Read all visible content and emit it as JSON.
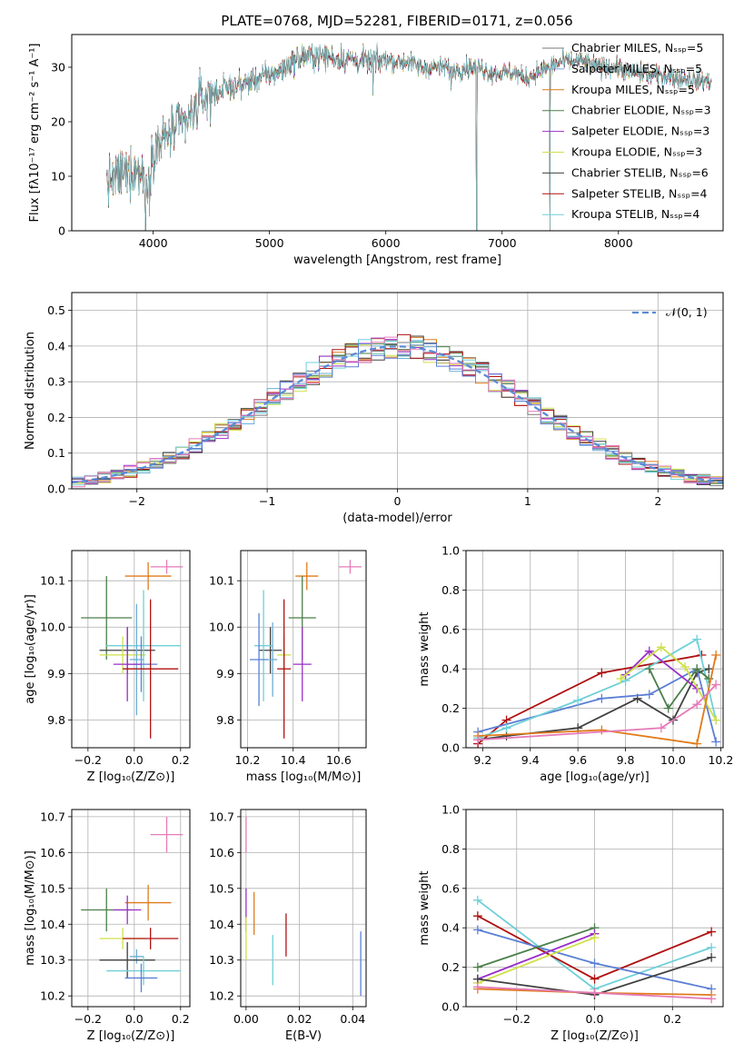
{
  "title": "PLATE=0768, MJD=52281, FIBERID=0171, z=0.056",
  "colors": [
    "#7a7a7a",
    "#6baed6",
    "#e07b1a",
    "#4a7f4a",
    "#9b2fc7",
    "#cfe04a",
    "#404040",
    "#b01010",
    "#6fd0d8",
    "#5b7fd6",
    "#e57ab8"
  ],
  "chart_data": [
    {
      "type": "line",
      "xlabel": "wavelength [Angstrom, rest frame]",
      "ylabel": "Flux [fλ10⁻¹⁷ erg cm⁻² s⁻¹ A⁻¹]",
      "xlim": [
        3300,
        8900
      ],
      "ylim": [
        0,
        36
      ],
      "xticks": [
        "4000",
        "5000",
        "6000",
        "7000",
        "8000"
      ],
      "yticks": [
        "0",
        "10",
        "20",
        "30"
      ],
      "legend": [
        "Chabrier MILES, Nₛₛₚ=5",
        "Salpeter MILES, Nₛₛₚ=5",
        "Kroupa MILES, Nₛₛₚ=5",
        "Chabrier ELODIE, Nₛₛₚ=3",
        "Salpeter ELODIE, Nₛₛₚ=3",
        "Kroupa ELODIE, Nₛₛₚ=3",
        "Chabrier STELIB, Nₛₛₚ=6",
        "Salpeter STELIB, Nₛₛₚ=4",
        "Kroupa STELIB, Nₛₛₚ=4"
      ],
      "legend_colors": [
        "#7a7a7a",
        "#6baed6",
        "#e07b1a",
        "#4a7f4a",
        "#9b2fc7",
        "#cfe04a",
        "#404040",
        "#b01010",
        "#6fd0d8"
      ],
      "continuum": [
        [
          3600,
          9
        ],
        [
          3700,
          10
        ],
        [
          3800,
          11
        ],
        [
          3900,
          11
        ],
        [
          3950,
          9
        ],
        [
          4000,
          15
        ],
        [
          4100,
          17
        ],
        [
          4200,
          19
        ],
        [
          4300,
          20
        ],
        [
          4400,
          24
        ],
        [
          4500,
          25
        ],
        [
          4600,
          26
        ],
        [
          4700,
          26.5
        ],
        [
          4800,
          27
        ],
        [
          4900,
          28
        ],
        [
          5000,
          28.5
        ],
        [
          5100,
          29.5
        ],
        [
          5200,
          31
        ],
        [
          5300,
          32
        ],
        [
          5400,
          32
        ],
        [
          5500,
          32
        ],
        [
          5600,
          31.5
        ],
        [
          5700,
          31.5
        ],
        [
          5800,
          31
        ],
        [
          5900,
          31
        ],
        [
          6000,
          31.5
        ],
        [
          6100,
          31
        ],
        [
          6200,
          31
        ],
        [
          6300,
          30
        ],
        [
          6400,
          30
        ],
        [
          6500,
          30
        ],
        [
          6600,
          29.5
        ],
        [
          6700,
          30
        ],
        [
          6800,
          30
        ],
        [
          6900,
          29
        ],
        [
          7000,
          29
        ],
        [
          7100,
          29
        ],
        [
          7200,
          28
        ],
        [
          7300,
          29
        ],
        [
          7400,
          30
        ],
        [
          7500,
          31
        ],
        [
          7600,
          31
        ],
        [
          7700,
          31
        ],
        [
          7800,
          30
        ],
        [
          7900,
          30
        ],
        [
          8000,
          30
        ],
        [
          8100,
          29
        ],
        [
          8200,
          29
        ],
        [
          8300,
          28.5
        ],
        [
          8400,
          28.5
        ],
        [
          8500,
          28
        ],
        [
          8600,
          28
        ],
        [
          8700,
          27.5
        ],
        [
          8800,
          27.5
        ]
      ],
      "dips": [
        [
          3934,
          0
        ],
        [
          3968,
          3
        ],
        [
          5890,
          25
        ],
        [
          6780,
          0
        ],
        [
          6563,
          26
        ],
        [
          7410,
          0
        ]
      ]
    },
    {
      "type": "histogram",
      "xlabel": "(data-model)/error",
      "ylabel": "Normed distribution",
      "xlim": [
        -2.5,
        2.5
      ],
      "ylim": [
        0,
        0.55
      ],
      "xticks": [
        "−2",
        "−1",
        "0",
        "1",
        "2"
      ],
      "yticks": [
        "0.0",
        "0.1",
        "0.2",
        "0.3",
        "0.4",
        "0.5"
      ],
      "legend": [
        "𝒩(0, 1)"
      ],
      "bin_width": 0.1,
      "reference_curve": "gaussian mean 0 sigma 1"
    },
    {
      "type": "scatter",
      "xlabel": "Z [log₁₀(Z/Z⊙)]",
      "ylabel": "age  [log₁₀(age/yr)]",
      "xlim": [
        -0.27,
        0.24
      ],
      "ylim": [
        9.74,
        10.165
      ],
      "xticks": [
        "−0.2",
        "0.0",
        "0.2"
      ],
      "yticks": [
        "9.8",
        "9.9",
        "10.0",
        "10.1"
      ],
      "points": [
        {
          "x": 0.14,
          "y": 10.13,
          "xerr": 0.07,
          "yerr": 0.015,
          "color": "#e57ab8"
        },
        {
          "x": 0.06,
          "y": 10.11,
          "xerr": 0.1,
          "yerr": 0.03,
          "color": "#e07b1a"
        },
        {
          "x": -0.12,
          "y": 10.02,
          "xerr": 0.11,
          "yerr": 0.09,
          "color": "#4a7f4a"
        },
        {
          "x": -0.03,
          "y": 9.95,
          "xerr": 0.12,
          "yerr": 0.05,
          "color": "#404040"
        },
        {
          "x": -0.05,
          "y": 9.94,
          "xerr": 0.1,
          "yerr": 0.04,
          "color": "#cfe04a"
        },
        {
          "x": 0.04,
          "y": 9.96,
          "xerr": 0.16,
          "yerr": 0.12,
          "color": "#6fd0d8"
        },
        {
          "x": 0.03,
          "y": 9.92,
          "xerr": 0.07,
          "yerr": 0.06,
          "color": "#5b7fd6"
        },
        {
          "x": 0.01,
          "y": 9.93,
          "xerr": 0.03,
          "yerr": 0.12,
          "color": "#6baed6"
        },
        {
          "x": -0.03,
          "y": 9.92,
          "xerr": 0.06,
          "yerr": 0.08,
          "color": "#9b2fc7"
        },
        {
          "x": 0.07,
          "y": 9.91,
          "xerr": 0.12,
          "yerr": 0.15,
          "color": "#b01010"
        }
      ]
    },
    {
      "type": "scatter",
      "xlabel": "mass [log₁₀(M/M⊙)]",
      "ylabel": "",
      "xlim": [
        10.17,
        10.72
      ],
      "ylim": [
        9.74,
        10.165
      ],
      "xticks": [
        "10.2",
        "10.4",
        "10.6"
      ],
      "yticks": [
        "9.8",
        "9.9",
        "10.0",
        "10.1"
      ],
      "points": [
        {
          "x": 10.65,
          "y": 10.13,
          "xerr": 0.05,
          "yerr": 0.015,
          "color": "#e57ab8"
        },
        {
          "x": 10.46,
          "y": 10.11,
          "xerr": 0.05,
          "yerr": 0.03,
          "color": "#e07b1a"
        },
        {
          "x": 10.44,
          "y": 10.02,
          "xerr": 0.06,
          "yerr": 0.09,
          "color": "#4a7f4a"
        },
        {
          "x": 10.3,
          "y": 9.95,
          "xerr": 0.05,
          "yerr": 0.05,
          "color": "#404040"
        },
        {
          "x": 10.36,
          "y": 9.94,
          "xerr": 0.03,
          "yerr": 0.04,
          "color": "#cfe04a"
        },
        {
          "x": 10.27,
          "y": 9.96,
          "xerr": 0.04,
          "yerr": 0.12,
          "color": "#6fd0d8"
        },
        {
          "x": 10.25,
          "y": 9.93,
          "xerr": 0.04,
          "yerr": 0.1,
          "color": "#5b7fd6"
        },
        {
          "x": 10.31,
          "y": 9.93,
          "xerr": 0.02,
          "yerr": 0.08,
          "color": "#6baed6"
        },
        {
          "x": 10.44,
          "y": 9.92,
          "xerr": 0.04,
          "yerr": 0.08,
          "color": "#9b2fc7"
        },
        {
          "x": 10.36,
          "y": 9.91,
          "xerr": 0.03,
          "yerr": 0.15,
          "color": "#b01010"
        }
      ]
    },
    {
      "type": "line",
      "xlabel": "age  [log₁₀(age/yr)]",
      "ylabel": "mass weight",
      "xlim": [
        9.13,
        10.21
      ],
      "ylim": [
        0,
        1
      ],
      "xticks": [
        "9.2",
        "9.4",
        "9.6",
        "9.8",
        "10.0",
        "10.2"
      ],
      "yticks": [
        "0.0",
        "0.2",
        "0.4",
        "0.6",
        "0.8",
        "1.0"
      ],
      "series": [
        {
          "color": "#b01010",
          "x": [
            9.18,
            9.3,
            9.7,
            10.12
          ],
          "y": [
            0.02,
            0.14,
            0.38,
            0.47
          ]
        },
        {
          "color": "#404040",
          "x": [
            9.18,
            9.3,
            9.6,
            9.85,
            10.0,
            10.1,
            10.15
          ],
          "y": [
            0.04,
            0.06,
            0.1,
            0.25,
            0.14,
            0.38,
            0.4
          ]
        },
        {
          "color": "#5b7fd6",
          "x": [
            9.18,
            9.7,
            9.9,
            10.1,
            10.18
          ],
          "y": [
            0.08,
            0.25,
            0.27,
            0.4,
            0.03
          ]
        },
        {
          "color": "#6fd0d8",
          "x": [
            9.18,
            9.3,
            9.6,
            9.8,
            10.1,
            10.18
          ],
          "y": [
            0.05,
            0.1,
            0.24,
            0.34,
            0.55,
            0.14
          ]
        },
        {
          "color": "#4a7f4a",
          "x": [
            9.9,
            9.98,
            10.1,
            10.15
          ],
          "y": [
            0.4,
            0.2,
            0.4,
            0.35
          ]
        },
        {
          "color": "#9b2fc7",
          "x": [
            9.8,
            9.9,
            10.1
          ],
          "y": [
            0.37,
            0.49,
            0.3
          ]
        },
        {
          "color": "#cfe04a",
          "x": [
            9.78,
            9.95,
            10.05,
            10.18
          ],
          "y": [
            0.35,
            0.51,
            0.41,
            0.14
          ]
        },
        {
          "color": "#e07b1a",
          "x": [
            9.18,
            9.7,
            10.1,
            10.18
          ],
          "y": [
            0.06,
            0.09,
            0.02,
            0.47
          ]
        },
        {
          "color": "#e57ab8",
          "x": [
            9.18,
            9.95,
            10.1,
            10.18
          ],
          "y": [
            0.04,
            0.1,
            0.22,
            0.32
          ]
        }
      ]
    },
    {
      "type": "scatter",
      "xlabel": "Z [log₁₀(Z/Z⊙)]",
      "ylabel": "mass [log₁₀(M/M⊙)]",
      "xlim": [
        -0.27,
        0.24
      ],
      "ylim": [
        10.17,
        10.72
      ],
      "xticks": [
        "−0.2",
        "0.0",
        "0.2"
      ],
      "yticks": [
        "10.2",
        "10.3",
        "10.4",
        "10.5",
        "10.6",
        "10.7"
      ],
      "points": [
        {
          "x": 0.14,
          "y": 10.65,
          "xerr": 0.07,
          "yerr": 0.05,
          "color": "#e57ab8"
        },
        {
          "x": 0.06,
          "y": 10.46,
          "xerr": 0.1,
          "yerr": 0.05,
          "color": "#e07b1a"
        },
        {
          "x": -0.12,
          "y": 10.44,
          "xerr": 0.11,
          "yerr": 0.06,
          "color": "#4a7f4a"
        },
        {
          "x": -0.03,
          "y": 10.44,
          "xerr": 0.06,
          "yerr": 0.04,
          "color": "#9b2fc7"
        },
        {
          "x": -0.05,
          "y": 10.36,
          "xerr": 0.1,
          "yerr": 0.03,
          "color": "#cfe04a"
        },
        {
          "x": 0.07,
          "y": 10.36,
          "xerr": 0.12,
          "yerr": 0.03,
          "color": "#b01010"
        },
        {
          "x": 0.01,
          "y": 10.31,
          "xerr": 0.03,
          "yerr": 0.02,
          "color": "#6baed6"
        },
        {
          "x": -0.03,
          "y": 10.3,
          "xerr": 0.12,
          "yerr": 0.05,
          "color": "#404040"
        },
        {
          "x": 0.04,
          "y": 10.27,
          "xerr": 0.16,
          "yerr": 0.04,
          "color": "#6fd0d8"
        },
        {
          "x": 0.03,
          "y": 10.25,
          "xerr": 0.07,
          "yerr": 0.04,
          "color": "#5b7fd6"
        }
      ]
    },
    {
      "type": "scatter",
      "xlabel": "E(B-V)",
      "ylabel": "",
      "xlim": [
        -0.002,
        0.045
      ],
      "ylim": [
        10.17,
        10.72
      ],
      "xticks": [
        "0.00",
        "0.02",
        "0.04"
      ],
      "yticks": [
        "10.2",
        "10.3",
        "10.4",
        "10.5",
        "10.6",
        "10.7"
      ],
      "points": [
        {
          "x": 0.0,
          "y": 10.65,
          "yerr": 0.05,
          "color": "#e57ab8"
        },
        {
          "x": 0.0,
          "y": 10.44,
          "yerr": 0.06,
          "color": "#9b2fc7"
        },
        {
          "x": 0.0,
          "y": 10.36,
          "yerr": 0.06,
          "color": "#cfe04a"
        },
        {
          "x": 0.003,
          "y": 10.43,
          "yerr": 0.06,
          "color": "#e07b1a"
        },
        {
          "x": 0.01,
          "y": 10.3,
          "yerr": 0.07,
          "color": "#6fd0d8"
        },
        {
          "x": 0.015,
          "y": 10.37,
          "yerr": 0.06,
          "color": "#b01010"
        },
        {
          "x": 0.043,
          "y": 10.29,
          "yerr": 0.09,
          "color": "#5b7fd6"
        }
      ]
    },
    {
      "type": "line",
      "xlabel": "Z [log₁₀(Z/Z⊙)]",
      "ylabel": "mass weight",
      "xlim": [
        -0.33,
        0.33
      ],
      "ylim": [
        0,
        1
      ],
      "xticks": [
        "−0.2",
        "0.0",
        "0.2"
      ],
      "yticks": [
        "0.0",
        "0.2",
        "0.4",
        "0.6",
        "0.8",
        "1.0"
      ],
      "series": [
        {
          "color": "#6fd0d8",
          "x": [
            -0.3,
            0.0,
            0.3
          ],
          "y": [
            0.54,
            0.09,
            0.3
          ]
        },
        {
          "color": "#b01010",
          "x": [
            -0.3,
            0.0,
            0.3
          ],
          "y": [
            0.46,
            0.14,
            0.38
          ]
        },
        {
          "color": "#5b7fd6",
          "x": [
            -0.3,
            0.0,
            0.3
          ],
          "y": [
            0.39,
            0.22,
            0.09
          ]
        },
        {
          "color": "#4a7f4a",
          "x": [
            -0.3,
            0.0
          ],
          "y": [
            0.2,
            0.4
          ]
        },
        {
          "color": "#9b2fc7",
          "x": [
            -0.3,
            0.0
          ],
          "y": [
            0.14,
            0.37
          ]
        },
        {
          "color": "#cfe04a",
          "x": [
            -0.3,
            0.0
          ],
          "y": [
            0.12,
            0.35
          ]
        },
        {
          "color": "#404040",
          "x": [
            -0.3,
            0.0,
            0.3
          ],
          "y": [
            0.14,
            0.06,
            0.25
          ]
        },
        {
          "color": "#e07b1a",
          "x": [
            -0.3,
            0.0,
            0.3
          ],
          "y": [
            0.09,
            0.07,
            0.06
          ]
        },
        {
          "color": "#e57ab8",
          "x": [
            -0.3,
            0.0,
            0.3
          ],
          "y": [
            0.1,
            0.07,
            0.04
          ]
        }
      ]
    }
  ]
}
